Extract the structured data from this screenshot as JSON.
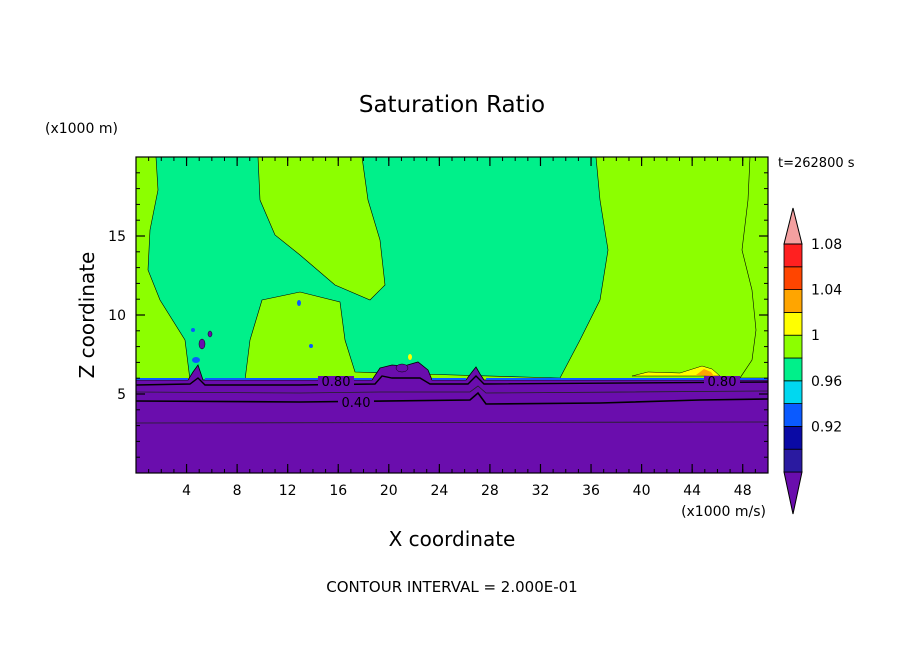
{
  "chart_data": {
    "type": "heatmap",
    "title": "Saturation Ratio",
    "xlabel": "X coordinate",
    "ylabel": "Z coordinate",
    "x_unit": "(x1000 m/s)",
    "y_unit": "(x1000 m)",
    "time_label": "t=262800 s",
    "footer": "CONTOUR INTERVAL = 2.000E-01",
    "xlim": [
      0,
      50
    ],
    "ylim": [
      0,
      20
    ],
    "x_ticks": [
      4,
      8,
      12,
      16,
      20,
      24,
      28,
      32,
      36,
      40,
      44,
      48
    ],
    "y_ticks": [
      5,
      10,
      15
    ],
    "colorbar": {
      "levels": [
        0.92,
        0.96,
        1,
        1.04,
        1.08
      ],
      "level_labels": [
        "0.92",
        "0.96",
        "1",
        "1.04",
        "1.08"
      ],
      "colors": [
        "#6a0dad",
        "#2a1aa0",
        "#0a0aa5",
        "#0a5aff",
        "#00d8f0",
        "#00f08a",
        "#8cff00",
        "#ffff00",
        "#ffa500",
        "#ff4500",
        "#ff2020",
        "#f4a0a0"
      ]
    },
    "contours": [
      {
        "label": "0.80",
        "level": 0.8
      },
      {
        "label": "0.40",
        "level": 0.4
      }
    ]
  }
}
